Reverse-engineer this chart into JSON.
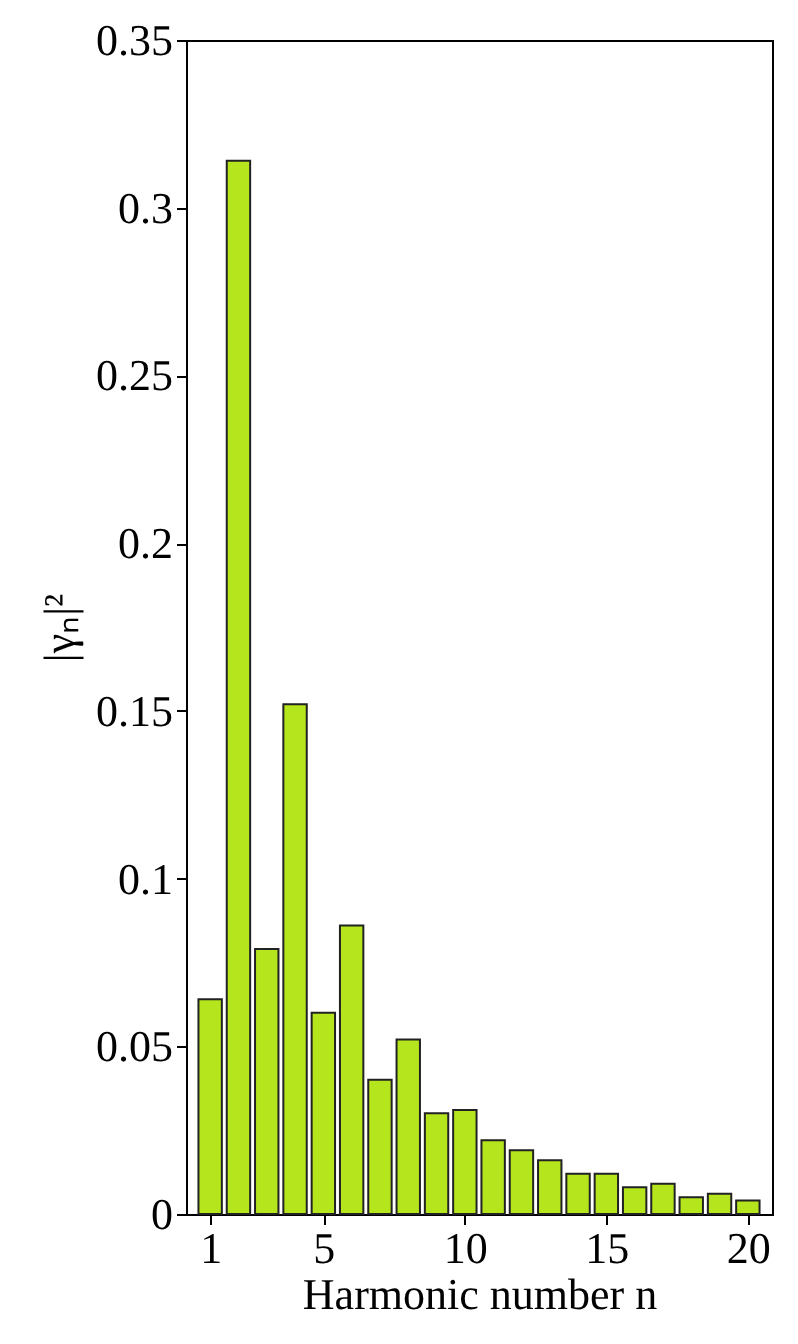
{
  "chart_data": {
    "type": "bar",
    "xlabel": "Harmonic number n",
    "ylabel": "|γₙ|²",
    "x": [
      1,
      2,
      3,
      4,
      5,
      6,
      7,
      8,
      9,
      10,
      11,
      12,
      13,
      14,
      15,
      16,
      17,
      18,
      19,
      20
    ],
    "values": [
      0.064,
      0.314,
      0.079,
      0.152,
      0.06,
      0.086,
      0.04,
      0.052,
      0.03,
      0.031,
      0.022,
      0.019,
      0.016,
      0.012,
      0.012,
      0.008,
      0.009,
      0.005,
      0.006,
      0.004
    ],
    "color": "#b5e61d",
    "xlim": [
      0.5,
      20.5
    ],
    "xticks": [
      1,
      5,
      10,
      15,
      20
    ],
    "ylim": [
      0,
      0.35
    ],
    "yticks": [
      0,
      0.05,
      0.1,
      0.15,
      0.2,
      0.25,
      0.3,
      0.35
    ],
    "grid": false
  }
}
